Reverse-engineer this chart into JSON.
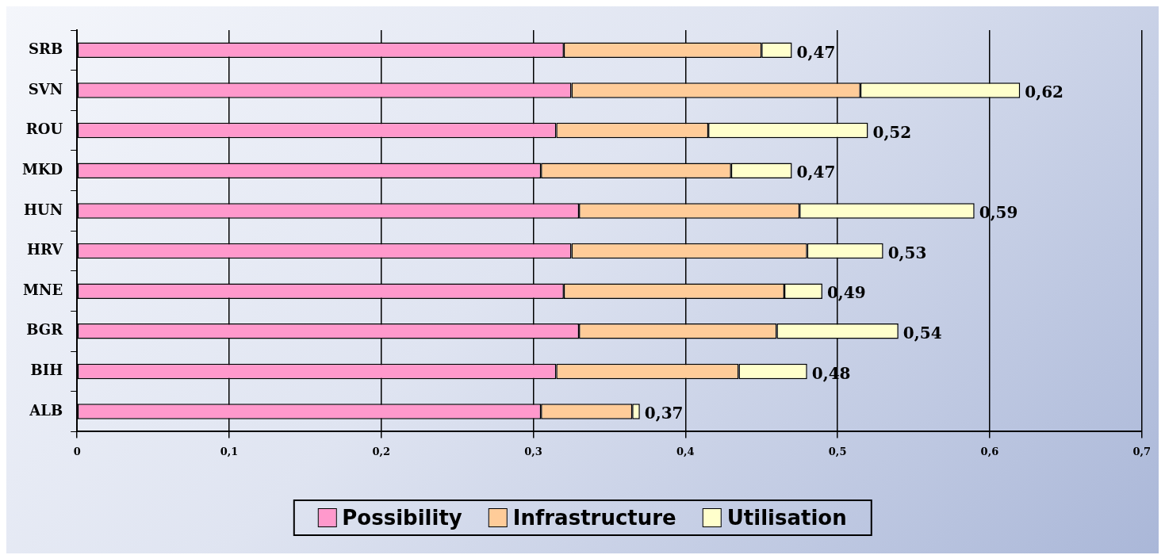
{
  "chart_data": {
    "type": "bar",
    "orientation": "horizontal",
    "stacked": true,
    "categories": [
      "SRB",
      "SVN",
      "ROU",
      "MKD",
      "HUN",
      "HRV",
      "MNE",
      "BGR",
      "BIH",
      "ALB"
    ],
    "series": [
      {
        "name": "Possibility",
        "color": "#ff99cc",
        "values": [
          0.32,
          0.325,
          0.315,
          0.305,
          0.33,
          0.325,
          0.32,
          0.33,
          0.315,
          0.305
        ]
      },
      {
        "name": "Infrastructure",
        "color": "#ffcc99",
        "values": [
          0.13,
          0.19,
          0.1,
          0.125,
          0.145,
          0.155,
          0.145,
          0.13,
          0.12,
          0.06
        ]
      },
      {
        "name": "Utilisation",
        "color": "#ffffcc",
        "values": [
          0.02,
          0.105,
          0.105,
          0.04,
          0.115,
          0.05,
          0.025,
          0.08,
          0.045,
          0.005
        ]
      }
    ],
    "totals": [
      "0,47",
      "0,62",
      "0,52",
      "0,47",
      "0,59",
      "0,53",
      "0,49",
      "0,54",
      "0,48",
      "0,37"
    ],
    "xlim": [
      0,
      0.7
    ],
    "xticks": [
      {
        "value": 0,
        "label": "0"
      },
      {
        "value": 0.1,
        "label": "0,1"
      },
      {
        "value": 0.2,
        "label": "0,2"
      },
      {
        "value": 0.3,
        "label": "0,3"
      },
      {
        "value": 0.4,
        "label": "0,4"
      },
      {
        "value": 0.5,
        "label": "0,5"
      },
      {
        "value": 0.6,
        "label": "0,6"
      },
      {
        "value": 0.7,
        "label": "0,7"
      }
    ],
    "grid": "x",
    "legend": "bottom"
  }
}
